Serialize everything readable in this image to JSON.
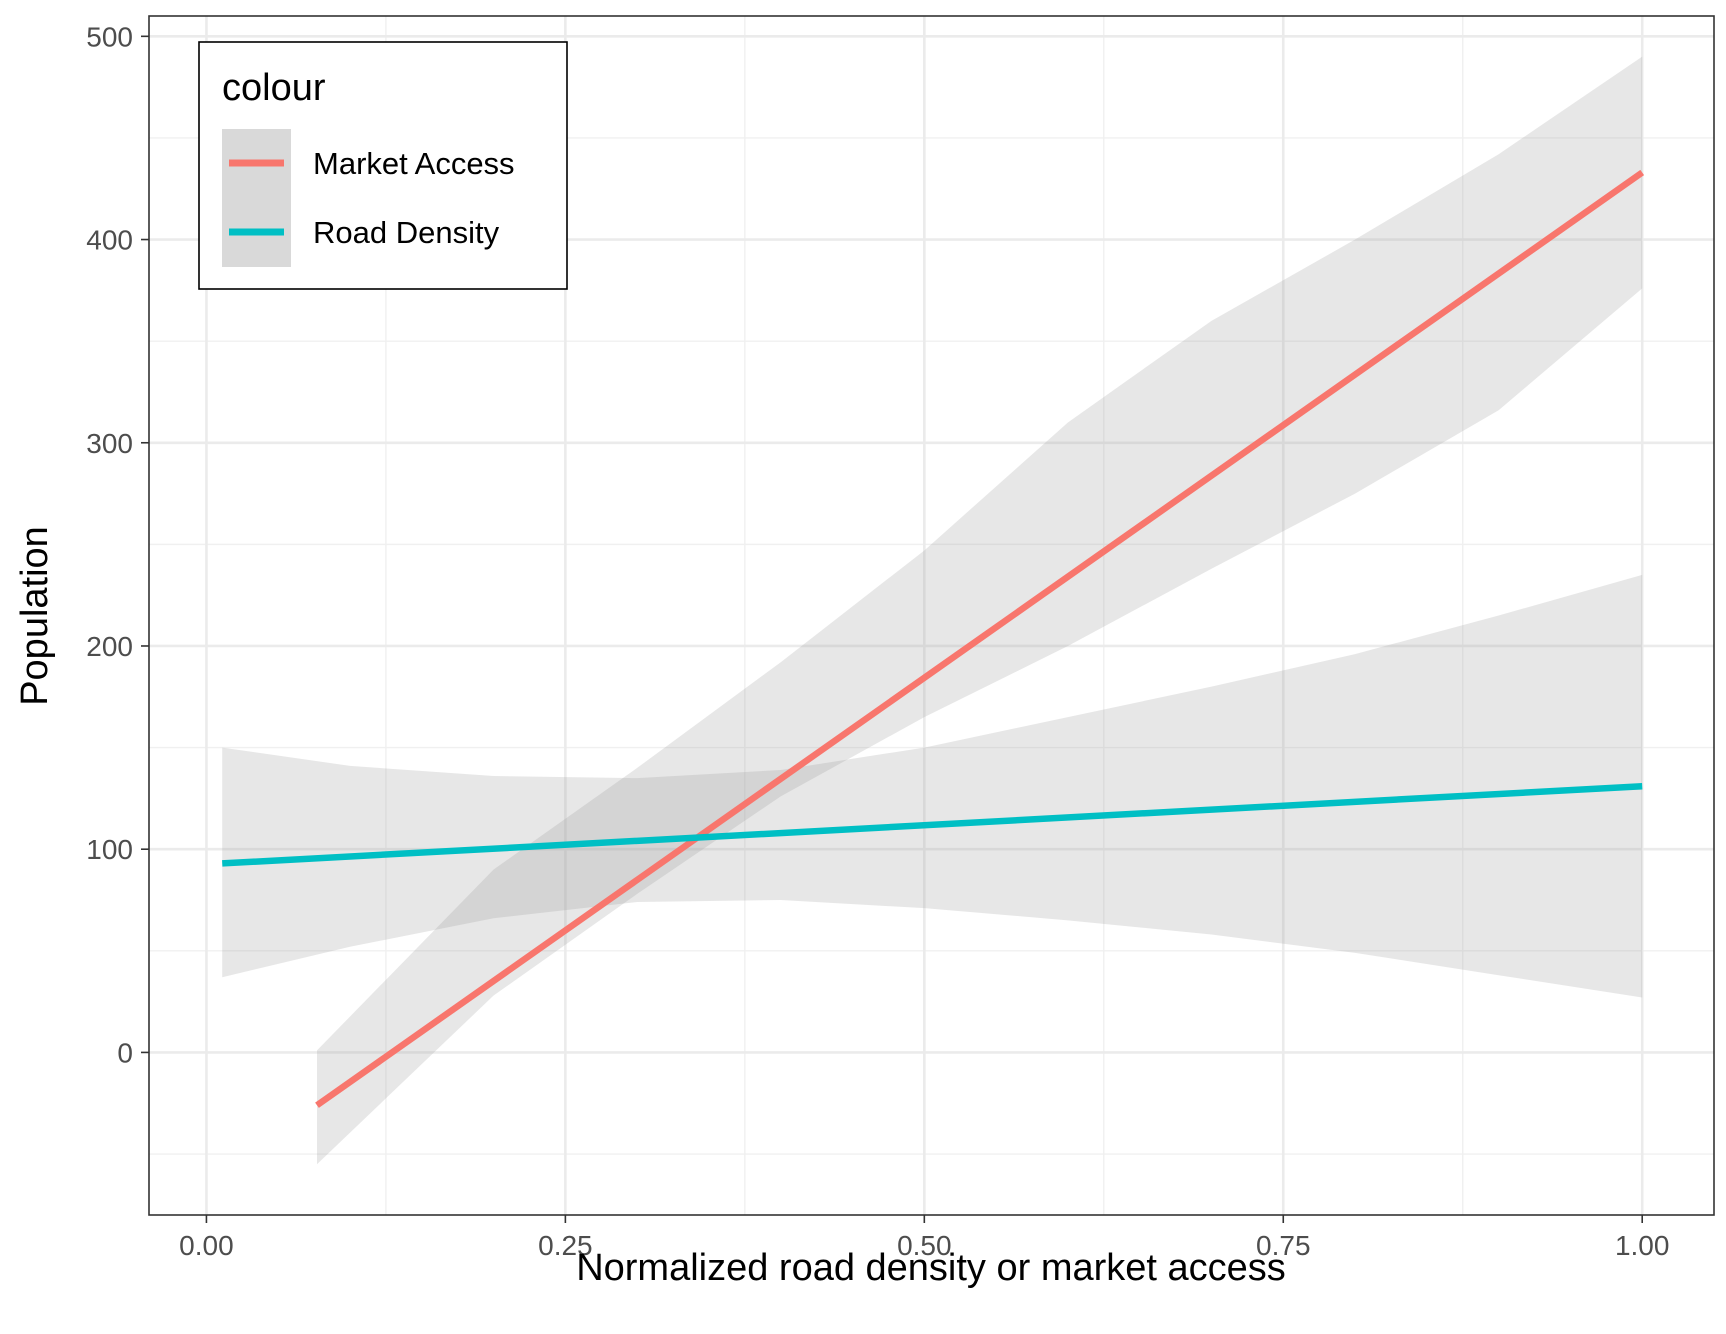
{
  "chart_data": {
    "type": "line",
    "title": "",
    "xlabel": "Normalized road density or market access",
    "ylabel": "Population",
    "xlim": [
      -0.04,
      1.05
    ],
    "ylim": [
      -80,
      510
    ],
    "x_ticks": [
      0.0,
      0.25,
      0.5,
      0.75,
      1.0
    ],
    "x_tick_labels": [
      "0.00",
      "0.25",
      "0.50",
      "0.75",
      "1.00"
    ],
    "y_ticks": [
      0,
      100,
      200,
      300,
      400,
      500
    ],
    "y_tick_labels": [
      "0",
      "100",
      "200",
      "300",
      "400",
      "500"
    ],
    "grid": true,
    "legend": {
      "title": "colour",
      "position": "top-left"
    },
    "series": [
      {
        "name": "Market Access",
        "color": "#F8766D",
        "x": [
          0.077,
          1.0
        ],
        "y": [
          -26,
          433
        ],
        "ribbon": {
          "x": [
            0.077,
            0.2,
            0.3,
            0.4,
            0.5,
            0.6,
            0.7,
            0.8,
            0.9,
            1.0
          ],
          "lower": [
            -55,
            28,
            78,
            126,
            165,
            200,
            238,
            275,
            316,
            376
          ],
          "upper": [
            1,
            90,
            140,
            192,
            247,
            310,
            360,
            400,
            442,
            490
          ]
        }
      },
      {
        "name": "Road Density",
        "color": "#00BFC4",
        "x": [
          0.011,
          1.0
        ],
        "y": [
          93,
          131
        ],
        "ribbon": {
          "x": [
            0.011,
            0.1,
            0.2,
            0.3,
            0.4,
            0.5,
            0.6,
            0.7,
            0.8,
            0.9,
            1.0
          ],
          "lower": [
            37,
            52,
            66,
            74,
            75,
            71,
            65,
            58,
            49,
            38,
            27
          ],
          "upper": [
            150,
            141,
            136,
            135,
            139,
            150,
            165,
            180,
            196,
            215,
            235
          ]
        }
      }
    ]
  }
}
